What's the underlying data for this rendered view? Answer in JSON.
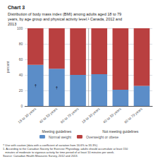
{
  "chart_data": {
    "type": "bar",
    "title": "Chart 3",
    "subtitle": [
      "Distribution of body mass index (BMI) among adults aged 18 to 79",
      "years, by age group and physical activity level.¹ Canada, 2012 and",
      "2013"
    ],
    "ylabel": "percent",
    "categories": [
      "18 to 39 years",
      "40 to 59 years",
      "60 to 79 years",
      "18 to 39 years",
      "40 to 59 years",
      "60 to 79 years"
    ],
    "groups": [
      "Meeting guidelines",
      "Meeting guidelines",
      "Meeting guidelines",
      "Not meeting guidelines",
      "Not meeting guidelines",
      "Not meeting guidelines"
    ],
    "series": [
      {
        "name": "Normal weight",
        "color": "#5B8DC8",
        "values": [
          53,
          48,
          40,
          41,
          21,
          26
        ],
        "annotations": [
          "†",
          "†",
          null,
          null,
          null,
          null
        ]
      },
      {
        "name": "Overweight or obese",
        "color": "#B94040",
        "values": [
          47,
          52,
          60,
          59,
          79,
          74
        ]
      }
    ],
    "stacked": true,
    "ylim": [
      0,
      100
    ],
    "yticks": [
      0,
      20,
      40,
      60,
      80,
      100
    ],
    "grid": true,
    "legend": "bottom",
    "footnotes": [
      "† Use with caution (data with a coefficient of variation from 16.6% to 33.3%)",
      "1. According to the Canadian Society for Exercise Physiology, adults should accumulate at least 150",
      "   minutes of moderate to vigorous activity for time period of at least 10 minutes per week.",
      "Source: Canadian Health Measures Survey, 2012 and 2013."
    ]
  }
}
